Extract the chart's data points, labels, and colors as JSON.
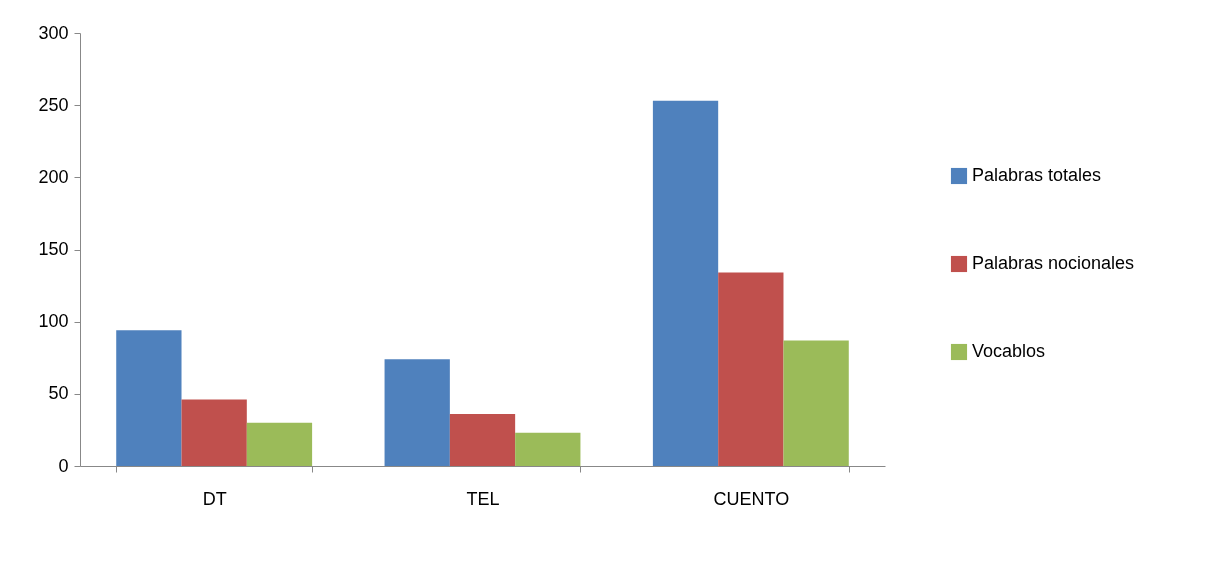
{
  "chart_data": {
    "type": "bar",
    "categories": [
      "DT",
      "TEL",
      "CUENTO"
    ],
    "series": [
      {
        "name": "Palabras totales",
        "color": "#4f81bd",
        "values": [
          94,
          74,
          253
        ]
      },
      {
        "name": "Palabras nocionales",
        "color": "#c0504d",
        "values": [
          46,
          36,
          134
        ]
      },
      {
        "name": "Vocablos",
        "color": "#9bbb59",
        "values": [
          30,
          23,
          87
        ]
      }
    ],
    "ylim": [
      0,
      300
    ],
    "yticks": [
      0,
      50,
      100,
      150,
      200,
      250,
      300
    ],
    "grid": false,
    "legend": "right"
  }
}
